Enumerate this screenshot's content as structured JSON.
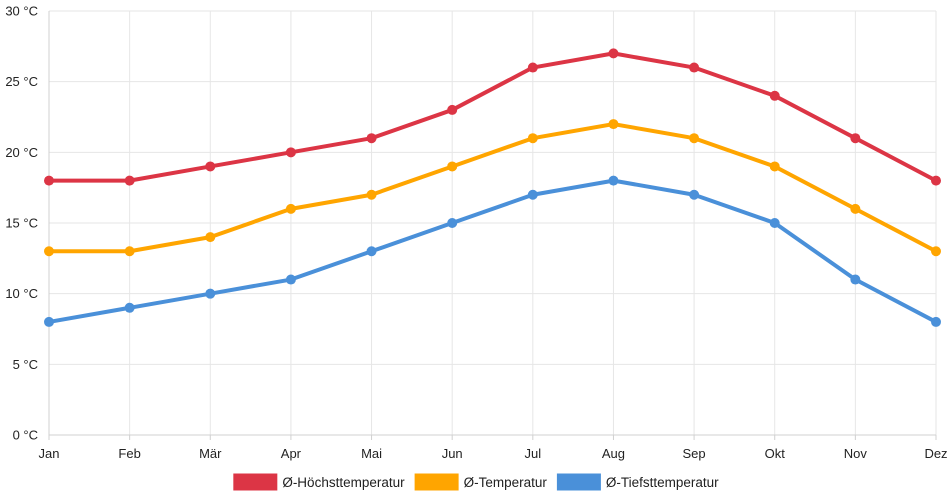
{
  "chart_data": {
    "type": "line",
    "title": "",
    "xlabel": "",
    "ylabel": "",
    "categories": [
      "Jan",
      "Feb",
      "Mär",
      "Apr",
      "Mai",
      "Jun",
      "Jul",
      "Aug",
      "Sep",
      "Okt",
      "Nov",
      "Dez"
    ],
    "ylim": [
      0,
      30
    ],
    "yticks": [
      0,
      5,
      10,
      15,
      20,
      25,
      30
    ],
    "y_unit": " °C",
    "grid": true,
    "legend_position": "bottom-center",
    "series": [
      {
        "name": "Ø-Höchsttemperatur",
        "color": "#dc3545",
        "values": [
          18,
          18,
          19,
          20,
          21,
          23,
          26,
          27,
          26,
          24,
          21,
          18
        ]
      },
      {
        "name": "Ø-Temperatur",
        "color": "#ffa500",
        "values": [
          13,
          13,
          14,
          16,
          17,
          19,
          21,
          22,
          21,
          19,
          16,
          13
        ]
      },
      {
        "name": "Ø-Tiefsttemperatur",
        "color": "#4a90d9",
        "values": [
          8,
          9,
          10,
          11,
          13,
          15,
          17,
          18,
          17,
          15,
          11,
          8
        ]
      }
    ]
  }
}
